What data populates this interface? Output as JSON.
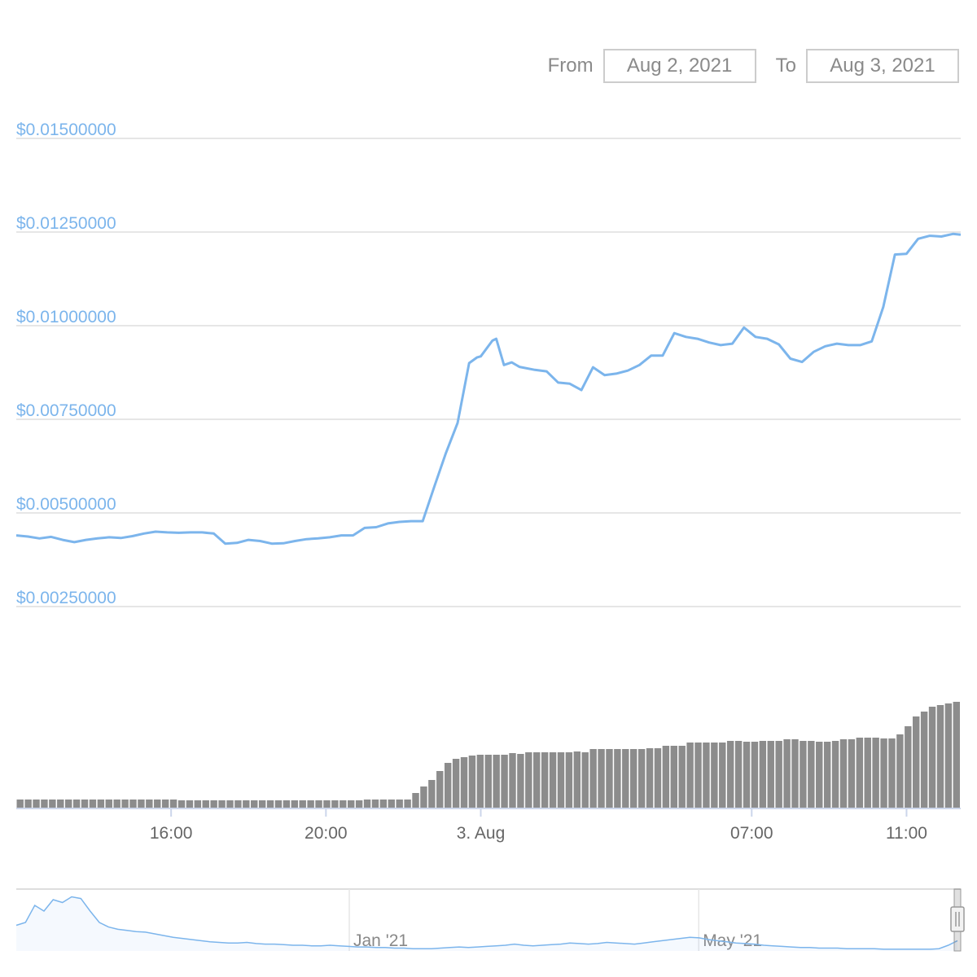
{
  "range_selector": {
    "from_label": "From",
    "from_value": "Aug 2, 2021",
    "to_label": "To",
    "to_value": "Aug 3, 2021"
  },
  "chart_data": {
    "type": "line",
    "price_series": {
      "color": "#7cb5ec",
      "time": [
        12.0,
        12.3,
        12.6,
        12.9,
        13.2,
        13.5,
        13.8,
        14.1,
        14.4,
        14.7,
        15.0,
        15.3,
        15.6,
        15.9,
        16.2,
        16.5,
        16.8,
        17.1,
        17.4,
        17.7,
        18.0,
        18.3,
        18.6,
        18.9,
        19.2,
        19.5,
        19.8,
        20.1,
        20.4,
        20.7,
        21.0,
        21.3,
        21.6,
        21.9,
        22.2,
        22.5,
        22.8,
        23.1,
        23.4,
        23.7,
        23.9,
        24.0,
        24.3,
        24.4,
        24.6,
        24.8,
        25.0,
        25.4,
        25.7,
        26.0,
        26.3,
        26.6,
        26.9,
        27.2,
        27.5,
        27.8,
        28.1,
        28.4,
        28.7,
        29.0,
        29.3,
        29.6,
        29.9,
        30.2,
        30.5,
        30.8,
        31.1,
        31.4,
        31.7,
        32.0,
        32.3,
        32.6,
        32.9,
        33.2,
        33.5,
        33.8,
        34.1,
        34.4,
        34.7,
        35.0,
        35.3,
        35.6,
        35.9,
        36.2,
        36.4
      ],
      "values": [
        0.0044,
        0.00437,
        0.00432,
        0.00436,
        0.00428,
        0.00422,
        0.00428,
        0.00432,
        0.00435,
        0.00433,
        0.00438,
        0.00445,
        0.0045,
        0.00448,
        0.00447,
        0.00448,
        0.00448,
        0.00445,
        0.00418,
        0.0042,
        0.00428,
        0.00425,
        0.00418,
        0.00419,
        0.00425,
        0.0043,
        0.00432,
        0.00435,
        0.0044,
        0.0044,
        0.0046,
        0.00462,
        0.00472,
        0.00476,
        0.00478,
        0.00478,
        0.0057,
        0.0066,
        0.0074,
        0.009,
        0.00915,
        0.00918,
        0.0096,
        0.00965,
        0.00895,
        0.00902,
        0.0089,
        0.00882,
        0.00878,
        0.00848,
        0.00845,
        0.00828,
        0.00889,
        0.00868,
        0.00872,
        0.0088,
        0.00895,
        0.0092,
        0.0092,
        0.0098,
        0.0097,
        0.00965,
        0.00955,
        0.00948,
        0.00952,
        0.00995,
        0.0097,
        0.00965,
        0.0095,
        0.00912,
        0.00903,
        0.0093,
        0.00945,
        0.00952,
        0.00948,
        0.00948,
        0.00958,
        0.0105,
        0.0119,
        0.01192,
        0.01232,
        0.0124,
        0.01238,
        0.01245,
        0.01243
      ]
    },
    "y_axis": {
      "min": 0.0025,
      "max": 0.015,
      "ticks": [
        "$0.01500000",
        "$0.01250000",
        "$0.01000000",
        "$0.00750000",
        "$0.00500000",
        "$0.00250000"
      ],
      "tick_values": [
        0.015,
        0.0125,
        0.01,
        0.0075,
        0.005,
        0.0025
      ]
    },
    "x_axis": {
      "ticks": [
        "16:00",
        "20:00",
        "3. Aug",
        "07:00",
        "11:00"
      ],
      "tick_times": [
        16,
        20,
        24,
        31,
        35
      ]
    },
    "volume_series": {
      "color": "#8c8c8c",
      "values": [
        10,
        10,
        10,
        10,
        10,
        10,
        10,
        10,
        10,
        10,
        10,
        10,
        10,
        10,
        10,
        10,
        10,
        10,
        10,
        10,
        9,
        9,
        9,
        9,
        9,
        9,
        9,
        9,
        9,
        9,
        9,
        9,
        9,
        9,
        9,
        9,
        9,
        9,
        9,
        9,
        9,
        9,
        9,
        10,
        10,
        10,
        10,
        10,
        10,
        18,
        26,
        34,
        45,
        55,
        60,
        62,
        64,
        65,
        65,
        65,
        65,
        67,
        66,
        68,
        68,
        68,
        68,
        68,
        68,
        69,
        68,
        72,
        72,
        72,
        72,
        72,
        72,
        72,
        73,
        73,
        76,
        76,
        76,
        80,
        80,
        80,
        80,
        80,
        82,
        82,
        81,
        81,
        82,
        82,
        82,
        84,
        84,
        82,
        82,
        81,
        81,
        82,
        84,
        84,
        86,
        86,
        86,
        85,
        85,
        90,
        100,
        112,
        118,
        124,
        126,
        128,
        130
      ],
      "ymax": 140
    },
    "navigator": {
      "ticks": [
        "Jan '21",
        "May '21"
      ],
      "tick_positions": [
        0.35,
        0.72
      ],
      "values": [
        0.45,
        0.5,
        0.8,
        0.7,
        0.9,
        0.85,
        0.95,
        0.92,
        0.7,
        0.5,
        0.42,
        0.38,
        0.36,
        0.34,
        0.33,
        0.3,
        0.27,
        0.24,
        0.22,
        0.2,
        0.18,
        0.16,
        0.15,
        0.14,
        0.14,
        0.15,
        0.13,
        0.12,
        0.12,
        0.11,
        0.1,
        0.1,
        0.09,
        0.09,
        0.1,
        0.09,
        0.08,
        0.07,
        0.07,
        0.06,
        0.06,
        0.05,
        0.05,
        0.04,
        0.04,
        0.04,
        0.05,
        0.06,
        0.07,
        0.06,
        0.07,
        0.08,
        0.09,
        0.1,
        0.12,
        0.1,
        0.09,
        0.1,
        0.11,
        0.12,
        0.14,
        0.13,
        0.12,
        0.13,
        0.15,
        0.14,
        0.13,
        0.12,
        0.14,
        0.16,
        0.18,
        0.2,
        0.22,
        0.24,
        0.23,
        0.2,
        0.18,
        0.16,
        0.14,
        0.13,
        0.12,
        0.1,
        0.09,
        0.08,
        0.07,
        0.06,
        0.06,
        0.05,
        0.05,
        0.05,
        0.04,
        0.04,
        0.04,
        0.04,
        0.03,
        0.03,
        0.03,
        0.03,
        0.03,
        0.03,
        0.04,
        0.1,
        0.18
      ]
    }
  }
}
